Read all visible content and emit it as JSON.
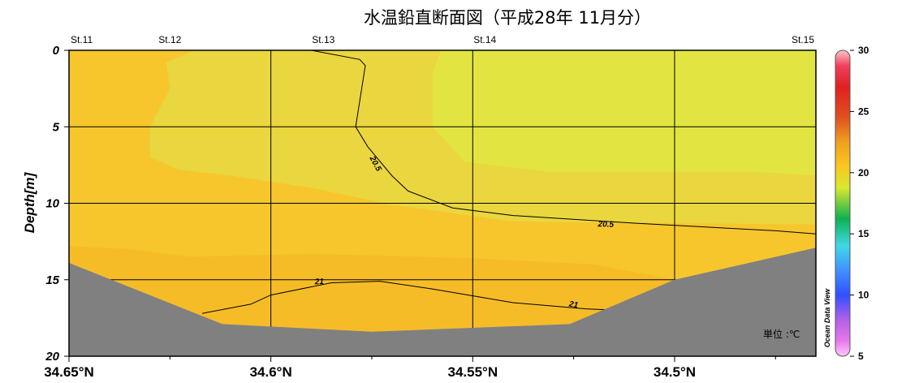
{
  "chart_data": {
    "type": "heatmap",
    "title": "水温鉛直断面図（平成28年 11月分）",
    "xlabel": "",
    "ylabel": "Depth[m]",
    "unit_label": "単位 :℃",
    "watermark": "Ocean Data View",
    "xlim": [
      34.65,
      34.465
    ],
    "ylim": [
      0,
      20
    ],
    "x_ticks": [
      34.65,
      34.6,
      34.55,
      34.5
    ],
    "x_tick_labels": [
      "34.65°N",
      "34.6°N",
      "34.55°N",
      "34.5°N"
    ],
    "x_minor_ticks": [
      34.625,
      34.575,
      34.525,
      34.475
    ],
    "y_ticks": [
      0,
      5,
      10,
      15,
      20
    ],
    "y_tick_labels": [
      "0",
      "5",
      "10",
      "15",
      "20"
    ],
    "stations": [
      {
        "name": "St.11",
        "lat": 34.65
      },
      {
        "name": "St.12",
        "lat": 34.625
      },
      {
        "name": "St.13",
        "lat": 34.587
      },
      {
        "name": "St.14",
        "lat": 34.547
      },
      {
        "name": "St.15",
        "lat": 34.465
      }
    ],
    "bottom_profile": [
      {
        "lat": 34.65,
        "depth": 13.9
      },
      {
        "lat": 34.612,
        "depth": 17.9
      },
      {
        "lat": 34.575,
        "depth": 18.4
      },
      {
        "lat": 34.526,
        "depth": 17.9
      },
      {
        "lat": 34.5,
        "depth": 15.0
      },
      {
        "lat": 34.465,
        "depth": 12.9
      }
    ],
    "regions": [
      {
        "temp": 20.4,
        "poly": [
          [
            34.558,
            0
          ],
          [
            34.465,
            0
          ],
          [
            34.465,
            8.2
          ],
          [
            34.478,
            8.0
          ],
          [
            34.51,
            8.0
          ],
          [
            34.53,
            8.0
          ],
          [
            34.552,
            7.3
          ],
          [
            34.56,
            5.0
          ],
          [
            34.56,
            1.5
          ]
        ]
      },
      {
        "temp": 20.65,
        "poly": [
          [
            34.619,
            0
          ],
          [
            34.558,
            0
          ],
          [
            34.56,
            1.5
          ],
          [
            34.56,
            5.0
          ],
          [
            34.552,
            7.3
          ],
          [
            34.53,
            8.0
          ],
          [
            34.51,
            8.0
          ],
          [
            34.478,
            8.0
          ],
          [
            34.465,
            8.2
          ],
          [
            34.465,
            11.4
          ],
          [
            34.54,
            11.2
          ],
          [
            34.57,
            10.1
          ],
          [
            34.59,
            9.0
          ],
          [
            34.61,
            8.2
          ],
          [
            34.623,
            7.8
          ],
          [
            34.63,
            7.0
          ],
          [
            34.63,
            5.0
          ],
          [
            34.625,
            2.5
          ],
          [
            34.626,
            0.8
          ]
        ]
      },
      {
        "temp": 20.8,
        "poly": [
          [
            34.65,
            0
          ],
          [
            34.619,
            0
          ],
          [
            34.626,
            0.8
          ],
          [
            34.625,
            2.5
          ],
          [
            34.63,
            5.0
          ],
          [
            34.63,
            7.0
          ],
          [
            34.623,
            7.8
          ],
          [
            34.61,
            8.2
          ],
          [
            34.59,
            9.0
          ],
          [
            34.57,
            10.1
          ],
          [
            34.54,
            11.2
          ],
          [
            34.465,
            11.4
          ],
          [
            34.465,
            12.9
          ],
          [
            34.5,
            15.0
          ],
          [
            34.52,
            14.0
          ],
          [
            34.55,
            13.6
          ],
          [
            34.59,
            13.3
          ],
          [
            34.62,
            13.5
          ],
          [
            34.635,
            13.0
          ],
          [
            34.65,
            12.8
          ]
        ]
      },
      {
        "temp": 21.05,
        "poly": [
          [
            34.65,
            12.8
          ],
          [
            34.635,
            13.0
          ],
          [
            34.62,
            13.5
          ],
          [
            34.59,
            13.3
          ],
          [
            34.55,
            13.6
          ],
          [
            34.52,
            14.0
          ],
          [
            34.5,
            15.0
          ],
          [
            34.526,
            17.9
          ],
          [
            34.575,
            18.4
          ],
          [
            34.612,
            17.9
          ],
          [
            34.65,
            13.9
          ]
        ]
      }
    ],
    "contours": [
      {
        "level": 20.5,
        "points": [
          [
            34.59,
            0
          ],
          [
            34.578,
            0.6
          ],
          [
            34.5766,
            1.0
          ],
          [
            34.579,
            5.0
          ],
          [
            34.576,
            6.3
          ],
          [
            34.57,
            8.2
          ],
          [
            34.566,
            9.2
          ],
          [
            34.555,
            10.3
          ],
          [
            34.54,
            10.8
          ],
          [
            34.51,
            11.3
          ],
          [
            34.475,
            11.8
          ],
          [
            34.465,
            12.0
          ]
        ],
        "labels": [
          {
            "lat": 34.574,
            "depth": 7.4,
            "angle": 62
          },
          {
            "lat": 34.517,
            "depth": 11.35,
            "angle": 2
          }
        ]
      },
      {
        "level": 21,
        "points": [
          [
            34.617,
            17.2
          ],
          [
            34.605,
            16.6
          ],
          [
            34.6,
            16.0
          ],
          [
            34.585,
            15.2
          ],
          [
            34.573,
            15.1
          ],
          [
            34.56,
            15.6
          ],
          [
            34.54,
            16.5
          ],
          [
            34.522,
            16.9
          ],
          [
            34.514,
            17.0
          ]
        ],
        "labels": [
          {
            "lat": 34.588,
            "depth": 15.1,
            "angle": -2
          },
          {
            "lat": 34.525,
            "depth": 16.6,
            "angle": 10
          }
        ]
      }
    ],
    "colorbar": {
      "min": 5,
      "max": 30,
      "ticks": [
        5,
        10,
        15,
        20,
        25,
        30
      ],
      "tick_labels": [
        "5",
        "10",
        "15",
        "20",
        "25",
        "30"
      ]
    }
  }
}
